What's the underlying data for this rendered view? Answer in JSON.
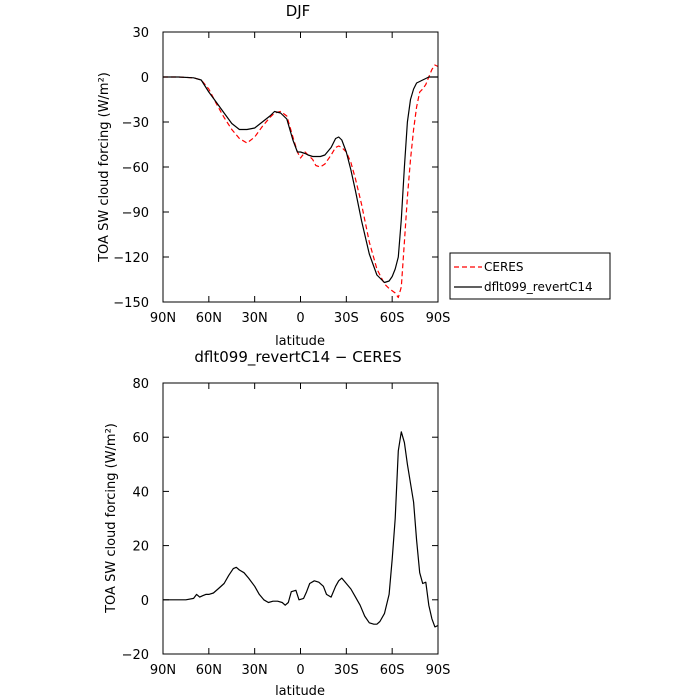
{
  "chart_data": [
    {
      "type": "line",
      "title": "DJF",
      "xlabel": "latitude",
      "ylabel": "TOA SW cloud forcing (W/m²)",
      "xlim": [
        90,
        -90
      ],
      "ylim": [
        -150,
        30
      ],
      "x_ticks": [
        "90N",
        "60N",
        "30N",
        "0",
        "30S",
        "60S",
        "90S"
      ],
      "y_ticks": [
        "30",
        "0",
        "−30",
        "−60",
        "−90",
        "−120",
        "−150"
      ],
      "legend": "right",
      "series": [
        {
          "name": "CERES",
          "color": "#ff0000",
          "dash": "dashed",
          "x": [
            90,
            80,
            70,
            65,
            60,
            55,
            50,
            45,
            40,
            35,
            30,
            25,
            20,
            17,
            13,
            9,
            5,
            2,
            0,
            -3,
            -5,
            -8,
            -10,
            -13,
            -16,
            -20,
            -23,
            -25,
            -27,
            -30,
            -33,
            -36,
            -40,
            -45,
            -50,
            -55,
            -58,
            -62,
            -64,
            -66,
            -68,
            -70,
            -72,
            -74,
            -76,
            -78,
            -80,
            -82,
            -84,
            -86,
            -88,
            -90
          ],
          "y": [
            0,
            0,
            -0.5,
            -2,
            -8,
            -18,
            -27,
            -35,
            -41,
            -44,
            -40,
            -33,
            -27,
            -24,
            -23,
            -26,
            -40,
            -50,
            -54,
            -50,
            -52,
            -55,
            -59,
            -60,
            -58,
            -52,
            -47,
            -46,
            -47,
            -50,
            -57,
            -68,
            -85,
            -110,
            -128,
            -138,
            -141,
            -144,
            -147,
            -140,
            -110,
            -80,
            -55,
            -35,
            -20,
            -10,
            -8,
            -5,
            0,
            5,
            8,
            7
          ]
        },
        {
          "name": "dflt099_revertC14",
          "color": "#000000",
          "dash": "solid",
          "x": [
            90,
            80,
            70,
            65,
            60,
            55,
            50,
            45,
            40,
            35,
            30,
            25,
            20,
            17,
            13,
            9,
            5,
            2,
            0,
            -3,
            -5,
            -8,
            -10,
            -13,
            -16,
            -20,
            -23,
            -25,
            -27,
            -30,
            -33,
            -36,
            -40,
            -45,
            -50,
            -55,
            -58,
            -60,
            -62,
            -64,
            -66,
            -68,
            -70,
            -72,
            -74,
            -76,
            -78,
            -80,
            -82,
            -84,
            -86,
            -88,
            -90
          ],
          "y": [
            0,
            0,
            -0.5,
            -2,
            -10,
            -17,
            -24,
            -31,
            -35,
            -35,
            -34,
            -30,
            -26,
            -23,
            -24,
            -28,
            -42,
            -50,
            -50,
            -51,
            -52,
            -53,
            -53,
            -53,
            -52,
            -47,
            -41,
            -40,
            -42,
            -50,
            -62,
            -76,
            -96,
            -118,
            -132,
            -137,
            -136,
            -133,
            -128,
            -120,
            -95,
            -60,
            -30,
            -15,
            -8,
            -4,
            -3,
            -2,
            -1,
            0,
            0,
            0,
            0
          ]
        }
      ]
    },
    {
      "type": "line",
      "title": "dflt099_revertC14 − CERES",
      "xlabel": "latitude",
      "ylabel": "TOA SW cloud forcing (W/m²)",
      "xlim": [
        90,
        -90
      ],
      "ylim": [
        -20,
        80
      ],
      "x_ticks": [
        "90N",
        "60N",
        "30N",
        "0",
        "30S",
        "60S",
        "90S"
      ],
      "y_ticks": [
        "80",
        "60",
        "40",
        "20",
        "0",
        "−20"
      ],
      "series": [
        {
          "color": "#000000",
          "dash": "solid",
          "x": [
            90,
            80,
            75,
            70,
            68,
            66,
            64,
            62,
            60,
            57,
            54,
            50,
            47,
            44,
            42,
            40,
            37,
            34,
            30,
            27,
            24,
            21,
            18,
            15,
            12,
            10,
            8,
            6,
            3,
            1,
            -2,
            -4,
            -6,
            -9,
            -12,
            -15,
            -17,
            -20,
            -23,
            -25,
            -27,
            -30,
            -33,
            -36,
            -39,
            -42,
            -45,
            -48,
            -50,
            -52,
            -55,
            -58,
            -60,
            -62,
            -64,
            -66,
            -68,
            -70,
            -72,
            -74,
            -76,
            -78,
            -80,
            -82,
            -84,
            -86,
            -88,
            -90
          ],
          "y": [
            0,
            0,
            0,
            0.5,
            2,
            1,
            1.5,
            2,
            2,
            2.5,
            4,
            6,
            9,
            11.5,
            12,
            11,
            10,
            8,
            5,
            2,
            0,
            -1,
            -0.5,
            -0.5,
            -1,
            -2,
            -1,
            3,
            3.5,
            0,
            0.5,
            3,
            6,
            7,
            6.5,
            5,
            2,
            1,
            5,
            7,
            8,
            6,
            4,
            1,
            -2,
            -6,
            -8.5,
            -9,
            -9,
            -8,
            -5,
            2,
            15,
            30,
            55,
            62,
            58,
            50,
            43,
            36,
            22,
            10,
            6,
            6.5,
            -2,
            -7,
            -10,
            -9.5
          ]
        }
      ]
    }
  ]
}
